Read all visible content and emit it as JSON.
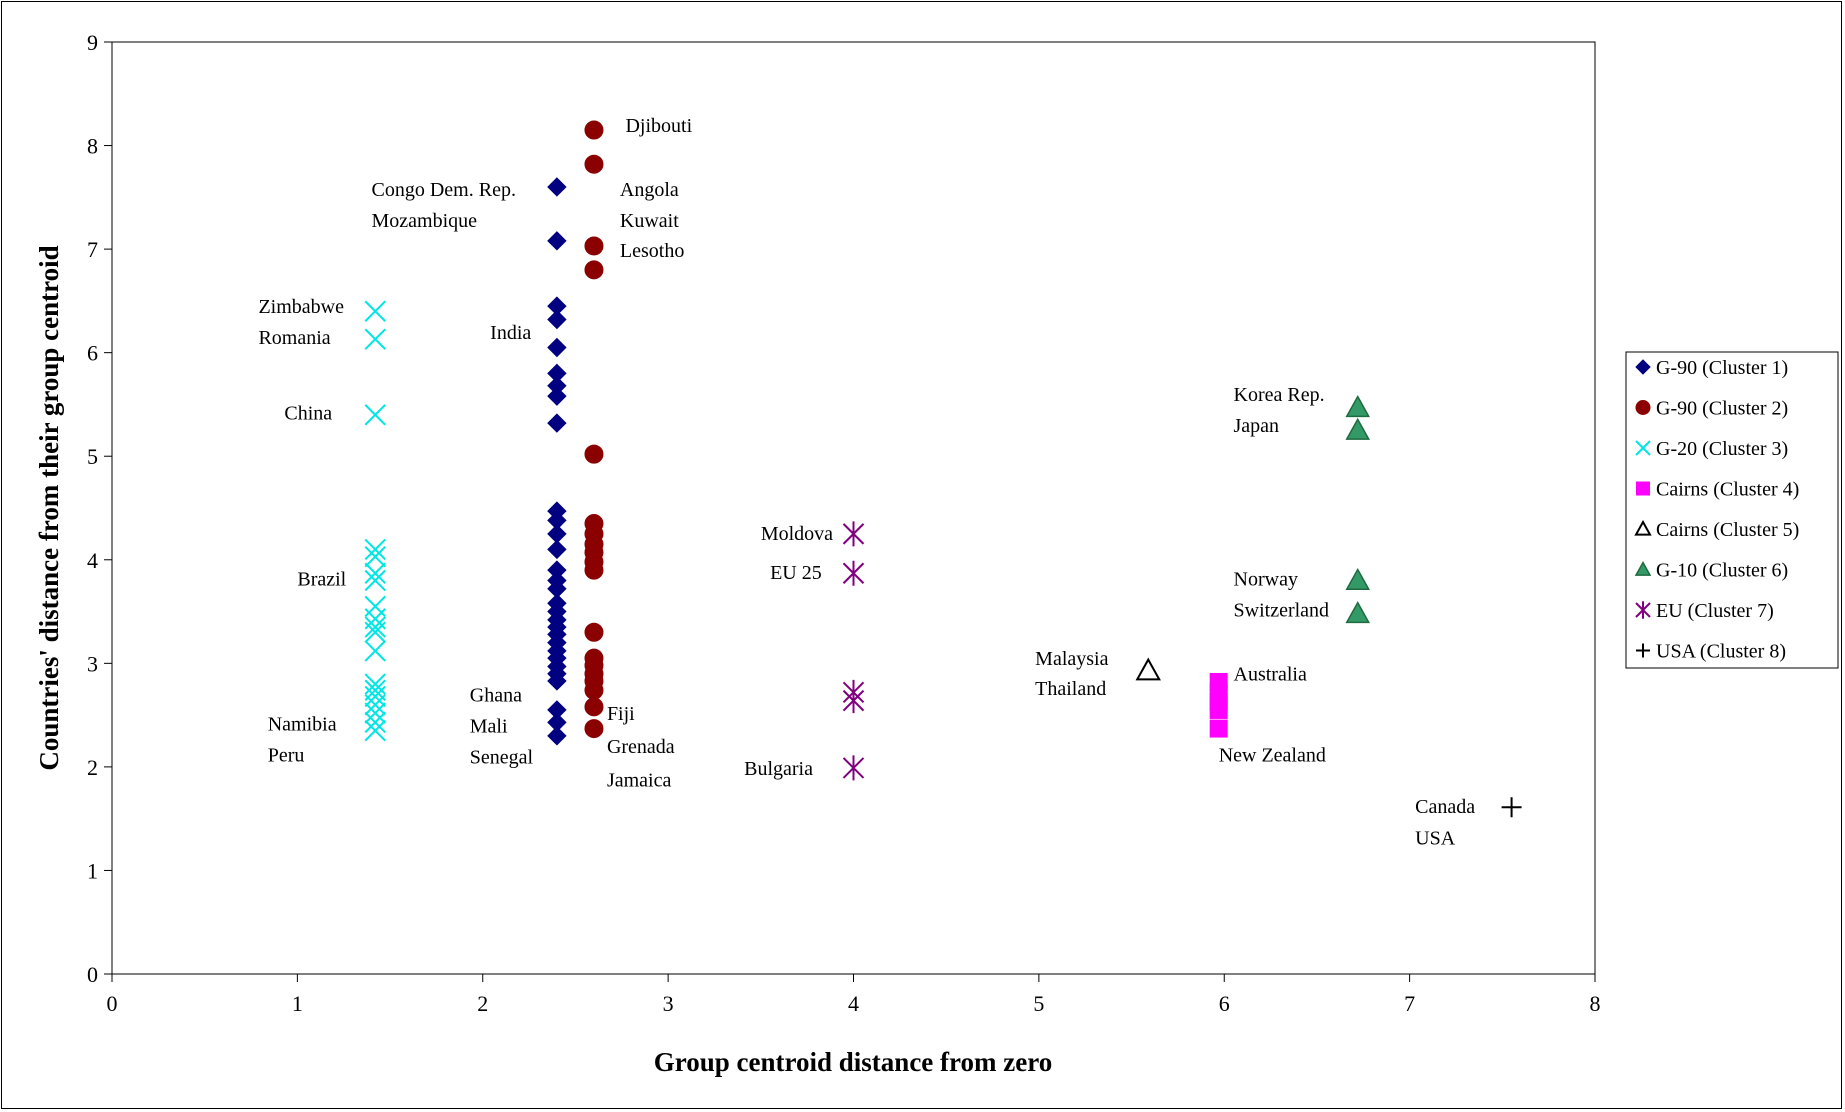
{
  "chart_data": {
    "type": "scatter",
    "xlabel": "Group centroid distance from zero",
    "ylabel": "Countries' distance from their group centroid",
    "xlim": [
      0,
      8
    ],
    "ylim": [
      0,
      9
    ],
    "x_ticks": [
      0,
      1,
      2,
      3,
      4,
      5,
      6,
      7,
      8
    ],
    "y_ticks": [
      0,
      1,
      2,
      3,
      4,
      5,
      6,
      7,
      8,
      9
    ],
    "grid": false,
    "legend_position": "right",
    "series": [
      {
        "name": "G-90 (Cluster 1)",
        "marker": "diamond",
        "color": "#000080",
        "points": [
          [
            2.4,
            7.6
          ],
          [
            2.4,
            7.08
          ],
          [
            2.4,
            6.45
          ],
          [
            2.4,
            6.32
          ],
          [
            2.4,
            6.05
          ],
          [
            2.4,
            5.8
          ],
          [
            2.4,
            5.68
          ],
          [
            2.4,
            5.58
          ],
          [
            2.4,
            5.32
          ],
          [
            2.4,
            4.47
          ],
          [
            2.4,
            4.38
          ],
          [
            2.4,
            4.25
          ],
          [
            2.4,
            4.1
          ],
          [
            2.4,
            3.9
          ],
          [
            2.4,
            3.8
          ],
          [
            2.4,
            3.72
          ],
          [
            2.4,
            3.58
          ],
          [
            2.4,
            3.5
          ],
          [
            2.4,
            3.42
          ],
          [
            2.4,
            3.35
          ],
          [
            2.4,
            3.28
          ],
          [
            2.4,
            3.2
          ],
          [
            2.4,
            3.12
          ],
          [
            2.4,
            3.05
          ],
          [
            2.4,
            2.97
          ],
          [
            2.4,
            2.9
          ],
          [
            2.4,
            2.83
          ],
          [
            2.4,
            2.55
          ],
          [
            2.4,
            2.43
          ],
          [
            2.4,
            2.3
          ]
        ]
      },
      {
        "name": "G-90 (Cluster 2)",
        "marker": "circle",
        "color": "#8b0000",
        "points": [
          [
            2.6,
            8.15
          ],
          [
            2.6,
            7.82
          ],
          [
            2.6,
            7.03
          ],
          [
            2.6,
            6.8
          ],
          [
            2.6,
            5.02
          ],
          [
            2.6,
            4.35
          ],
          [
            2.6,
            4.25
          ],
          [
            2.6,
            4.15
          ],
          [
            2.6,
            4.07
          ],
          [
            2.6,
            3.98
          ],
          [
            2.6,
            3.9
          ],
          [
            2.6,
            3.3
          ],
          [
            2.6,
            3.05
          ],
          [
            2.6,
            2.98
          ],
          [
            2.6,
            2.9
          ],
          [
            2.6,
            2.83
          ],
          [
            2.6,
            2.74
          ],
          [
            2.6,
            2.58
          ],
          [
            2.6,
            2.37
          ]
        ]
      },
      {
        "name": "G-20 (Cluster 3)",
        "marker": "x",
        "color": "#00e5e5",
        "points": [
          [
            1.42,
            6.4
          ],
          [
            1.42,
            6.13
          ],
          [
            1.42,
            5.4
          ],
          [
            1.42,
            4.1
          ],
          [
            1.42,
            4.03
          ],
          [
            1.42,
            3.87
          ],
          [
            1.42,
            3.8
          ],
          [
            1.42,
            3.55
          ],
          [
            1.42,
            3.43
          ],
          [
            1.42,
            3.35
          ],
          [
            1.42,
            3.3
          ],
          [
            1.42,
            3.12
          ],
          [
            1.42,
            2.8
          ],
          [
            1.42,
            2.74
          ],
          [
            1.42,
            2.68
          ],
          [
            1.42,
            2.6
          ],
          [
            1.42,
            2.52
          ],
          [
            1.42,
            2.43
          ],
          [
            1.42,
            2.35
          ]
        ]
      },
      {
        "name": "Cairns (Cluster 4)",
        "marker": "square",
        "color": "#ff00ff",
        "points": [
          [
            5.97,
            2.82
          ],
          [
            5.97,
            2.72
          ],
          [
            5.97,
            2.63
          ],
          [
            5.97,
            2.55
          ],
          [
            5.97,
            2.37
          ]
        ]
      },
      {
        "name": "Cairns (Cluster 5)",
        "marker": "triangle-open",
        "color": "#000000",
        "points": [
          [
            5.59,
            2.93
          ]
        ]
      },
      {
        "name": "G-10 (Cluster 6)",
        "marker": "triangle",
        "color": "#339966",
        "points": [
          [
            6.72,
            5.47
          ],
          [
            6.72,
            5.25
          ],
          [
            6.72,
            3.8
          ],
          [
            6.72,
            3.48
          ]
        ]
      },
      {
        "name": "EU (Cluster 7)",
        "marker": "star",
        "color": "#800080",
        "points": [
          [
            4.0,
            4.25
          ],
          [
            4.0,
            3.87
          ],
          [
            4.0,
            2.72
          ],
          [
            4.0,
            2.64
          ],
          [
            4.0,
            1.99
          ]
        ]
      },
      {
        "name": "USA (Cluster 8)",
        "marker": "plus",
        "color": "#000000",
        "points": [
          [
            7.55,
            1.61
          ]
        ]
      }
    ],
    "annotations": [
      {
        "text": "Djibouti",
        "x": 2.77,
        "y": 8.2
      },
      {
        "text": "Congo Dem. Rep.",
        "x": 1.4,
        "y": 7.58
      },
      {
        "text": "Mozambique",
        "x": 1.4,
        "y": 7.28
      },
      {
        "text": "Angola",
        "x": 2.74,
        "y": 7.58
      },
      {
        "text": "Kuwait",
        "x": 2.74,
        "y": 7.28
      },
      {
        "text": "Lesotho",
        "x": 2.74,
        "y": 6.99
      },
      {
        "text": "Zimbabwe",
        "x": 0.79,
        "y": 6.45
      },
      {
        "text": "Romania",
        "x": 0.79,
        "y": 6.15
      },
      {
        "text": "India",
        "x": 2.04,
        "y": 6.2
      },
      {
        "text": "China",
        "x": 0.93,
        "y": 5.42
      },
      {
        "text": "Brazil",
        "x": 1.0,
        "y": 3.82
      },
      {
        "text": "Namibia",
        "x": 0.84,
        "y": 2.42
      },
      {
        "text": "Peru",
        "x": 0.84,
        "y": 2.12
      },
      {
        "text": "Ghana",
        "x": 1.93,
        "y": 2.7
      },
      {
        "text": "Mali",
        "x": 1.93,
        "y": 2.4
      },
      {
        "text": "Senegal",
        "x": 1.93,
        "y": 2.1
      },
      {
        "text": "Fiji",
        "x": 2.67,
        "y": 2.52
      },
      {
        "text": "Grenada",
        "x": 2.67,
        "y": 2.2
      },
      {
        "text": "Jamaica",
        "x": 2.67,
        "y": 1.88
      },
      {
        "text": "Moldova",
        "x": 3.5,
        "y": 4.26
      },
      {
        "text": "EU 25",
        "x": 3.55,
        "y": 3.88
      },
      {
        "text": "Bulgaria",
        "x": 3.41,
        "y": 1.99
      },
      {
        "text": "Malaysia",
        "x": 4.98,
        "y": 3.05
      },
      {
        "text": "Thailand",
        "x": 4.98,
        "y": 2.76
      },
      {
        "text": "Australia",
        "x": 6.05,
        "y": 2.9
      },
      {
        "text": "New Zealand",
        "x": 5.97,
        "y": 2.12
      },
      {
        "text": "Korea Rep.",
        "x": 6.05,
        "y": 5.6
      },
      {
        "text": "Japan",
        "x": 6.05,
        "y": 5.3
      },
      {
        "text": "Norway",
        "x": 6.05,
        "y": 3.82
      },
      {
        "text": "Switzerland",
        "x": 6.05,
        "y": 3.52
      },
      {
        "text": "Canada",
        "x": 7.03,
        "y": 1.62
      },
      {
        "text": "USA",
        "x": 7.03,
        "y": 1.32
      }
    ]
  }
}
